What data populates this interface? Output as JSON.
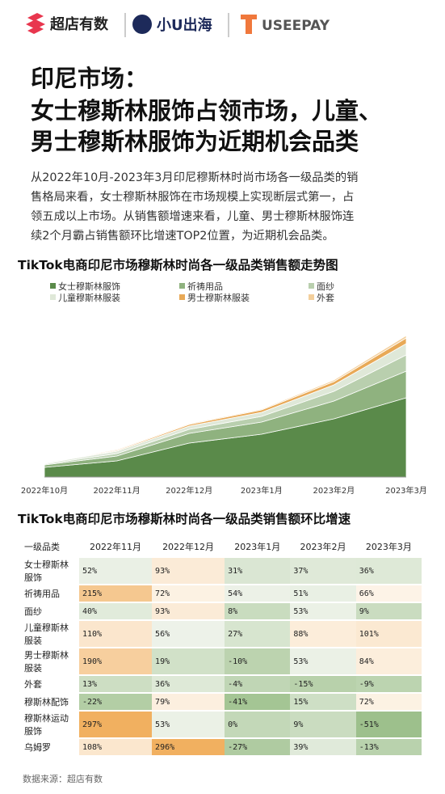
{
  "header": {
    "brands": [
      "超店有数",
      "小U出海",
      "USEEPAY"
    ]
  },
  "title": [
    "印尼市场：",
    "女士穆斯林服饰占领市场，儿童、",
    "男士穆斯林服饰为近期机会品类"
  ],
  "description": [
    "从2022年10月-2023年3月印尼穆斯林时尚市场各一级品类的销",
    "售格局来看，女士穆斯林服饰在市场规模上实现断层式第一，占",
    "领五成以上市场。从销售额增速来看，儿童、男士穆斯林服饰连",
    "续2个月霸占销售额环比增速TOP2位置，为近期机会品类。"
  ],
  "chart_data": {
    "type": "stacked_area",
    "title": "TikTok电商印尼市场穆斯林时尚各一级品类销售额走势图",
    "categories": [
      "2022年10月",
      "2022年11月",
      "2022年12月",
      "2023年1月",
      "2023年2月",
      "2023年3月"
    ],
    "ylim": [
      0,
      200
    ],
    "series": [
      {
        "name": "女士穆斯林服饰",
        "color": "#5a8a4a",
        "values": [
          12,
          20,
          42,
          53,
          72,
          98
        ]
      },
      {
        "name": "祈祷用品",
        "color": "#8fb27f",
        "values": [
          3,
          6,
          12,
          15,
          22,
          33
        ]
      },
      {
        "name": "面纱",
        "color": "#b9cfae",
        "values": [
          1,
          3,
          5,
          7,
          12,
          20
        ]
      },
      {
        "name": "儿童穆斯林服装",
        "color": "#dfe8d8",
        "values": [
          1,
          3,
          4,
          5,
          8,
          14
        ]
      },
      {
        "name": "男士穆斯林服装",
        "color": "#e8a957",
        "values": [
          0.5,
          1,
          2,
          3,
          4,
          7
        ]
      },
      {
        "name": "外套",
        "color": "#f3cf9c",
        "values": [
          0.5,
          1,
          1,
          1,
          2,
          3
        ]
      }
    ]
  },
  "table": {
    "title": "TikTok电商印尼市场穆斯林时尚各一级品类销售额环比增速",
    "header": [
      "一级品类",
      "2022年11月",
      "2022年12月",
      "2023年1月",
      "2023年2月",
      "2023年3月"
    ],
    "rows": [
      [
        "女士穆斯林服饰",
        "52%",
        "93%",
        "31%",
        "37%",
        "36%"
      ],
      [
        "祈祷用品",
        "215%",
        "72%",
        "54%",
        "51%",
        "66%"
      ],
      [
        "面纱",
        "40%",
        "93%",
        "8%",
        "53%",
        "9%"
      ],
      [
        "儿童穆斯林服装",
        "110%",
        "56%",
        "27%",
        "88%",
        "101%"
      ],
      [
        "男士穆斯林服装",
        "190%",
        "19%",
        "-10%",
        "53%",
        "84%"
      ],
      [
        "外套",
        "13%",
        "36%",
        "-4%",
        "-15%",
        "-9%"
      ],
      [
        "穆斯林配饰",
        "-22%",
        "79%",
        "-41%",
        "15%",
        "72%"
      ],
      [
        "穆斯林运动服饰",
        "297%",
        "53%",
        "0%",
        "9%",
        "-51%"
      ],
      [
        "乌姆罗",
        "108%",
        "296%",
        "-27%",
        "39%",
        "-13%"
      ]
    ]
  },
  "source": "数据来源：超店有数"
}
